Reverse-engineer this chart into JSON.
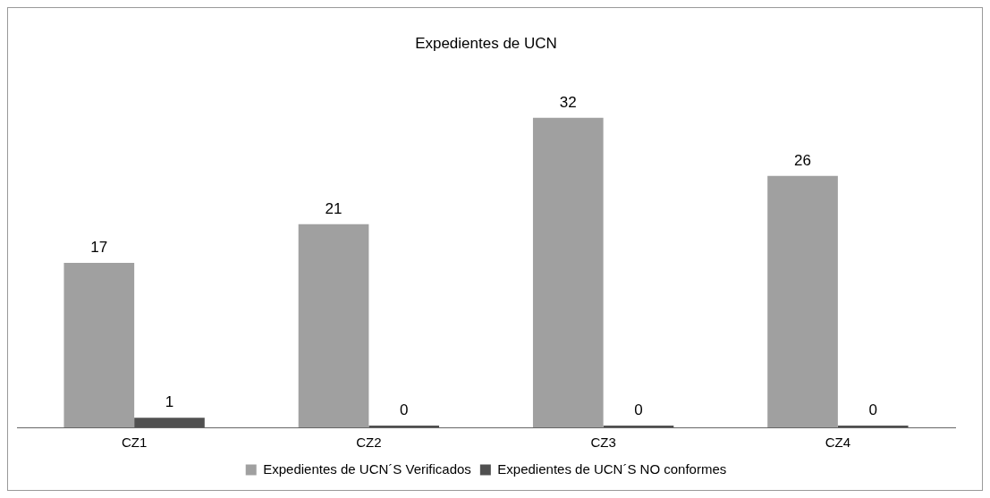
{
  "chart_data": {
    "type": "bar",
    "title": "Expedientes de UCN",
    "categories": [
      "CZ1",
      "CZ2",
      "CZ3",
      "CZ4"
    ],
    "series": [
      {
        "name": "Expedientes de UCN´S Verificados",
        "color": "#a0a0a0",
        "values": [
          17,
          21,
          32,
          26
        ]
      },
      {
        "name": "Expedientes de UCN´S NO conformes",
        "color": "#505050",
        "values": [
          1,
          0,
          0,
          0
        ]
      }
    ],
    "data_labels": true,
    "legend": "bottom",
    "grid": false
  }
}
